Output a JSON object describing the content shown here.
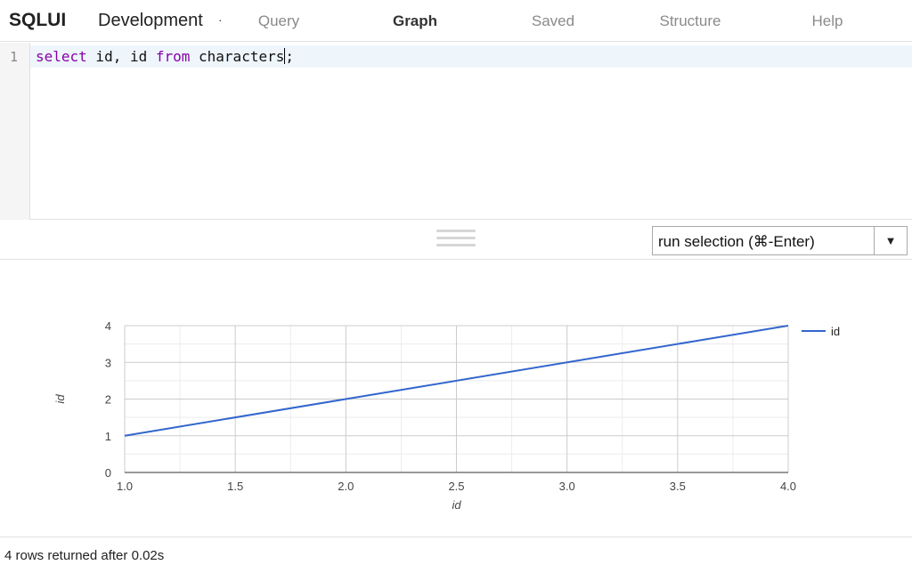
{
  "header": {
    "brand": "SQLUI",
    "connection": "Development",
    "connection_indicator": "·",
    "tabs": [
      {
        "label": "Query",
        "active": false
      },
      {
        "label": "Graph",
        "active": true
      },
      {
        "label": "Saved",
        "active": false
      },
      {
        "label": "Structure",
        "active": false
      },
      {
        "label": "Help",
        "active": false
      }
    ]
  },
  "editor": {
    "line_number": "1",
    "tokens": [
      {
        "text": "select",
        "kw": true
      },
      {
        "text": " id, id ",
        "kw": false
      },
      {
        "text": "from",
        "kw": true
      },
      {
        "text": " characters",
        "kw": false
      },
      {
        "text": ";",
        "kw": false
      }
    ],
    "caret_after_token": 3
  },
  "toolbar": {
    "resize_handle_icon": "drag-handle-icon",
    "run_label": "run selection (⌘-Enter)",
    "dropdown_icon": "▼"
  },
  "chart_data": {
    "type": "line",
    "x": [
      1,
      2,
      3,
      4
    ],
    "series": [
      {
        "name": "id",
        "values": [
          1,
          2,
          3,
          4
        ],
        "color": "#3366cc"
      }
    ],
    "xlabel": "id",
    "ylabel": "id",
    "xlim": [
      1,
      4
    ],
    "ylim": [
      0,
      4
    ],
    "x_ticks": [
      "1.0",
      "1.5",
      "2.0",
      "2.5",
      "3.0",
      "3.5",
      "4.0"
    ],
    "y_ticks": [
      "0",
      "1",
      "2",
      "3",
      "4"
    ],
    "grid": true,
    "legend": "right"
  },
  "status": {
    "text": "4 rows returned after 0.02s"
  }
}
